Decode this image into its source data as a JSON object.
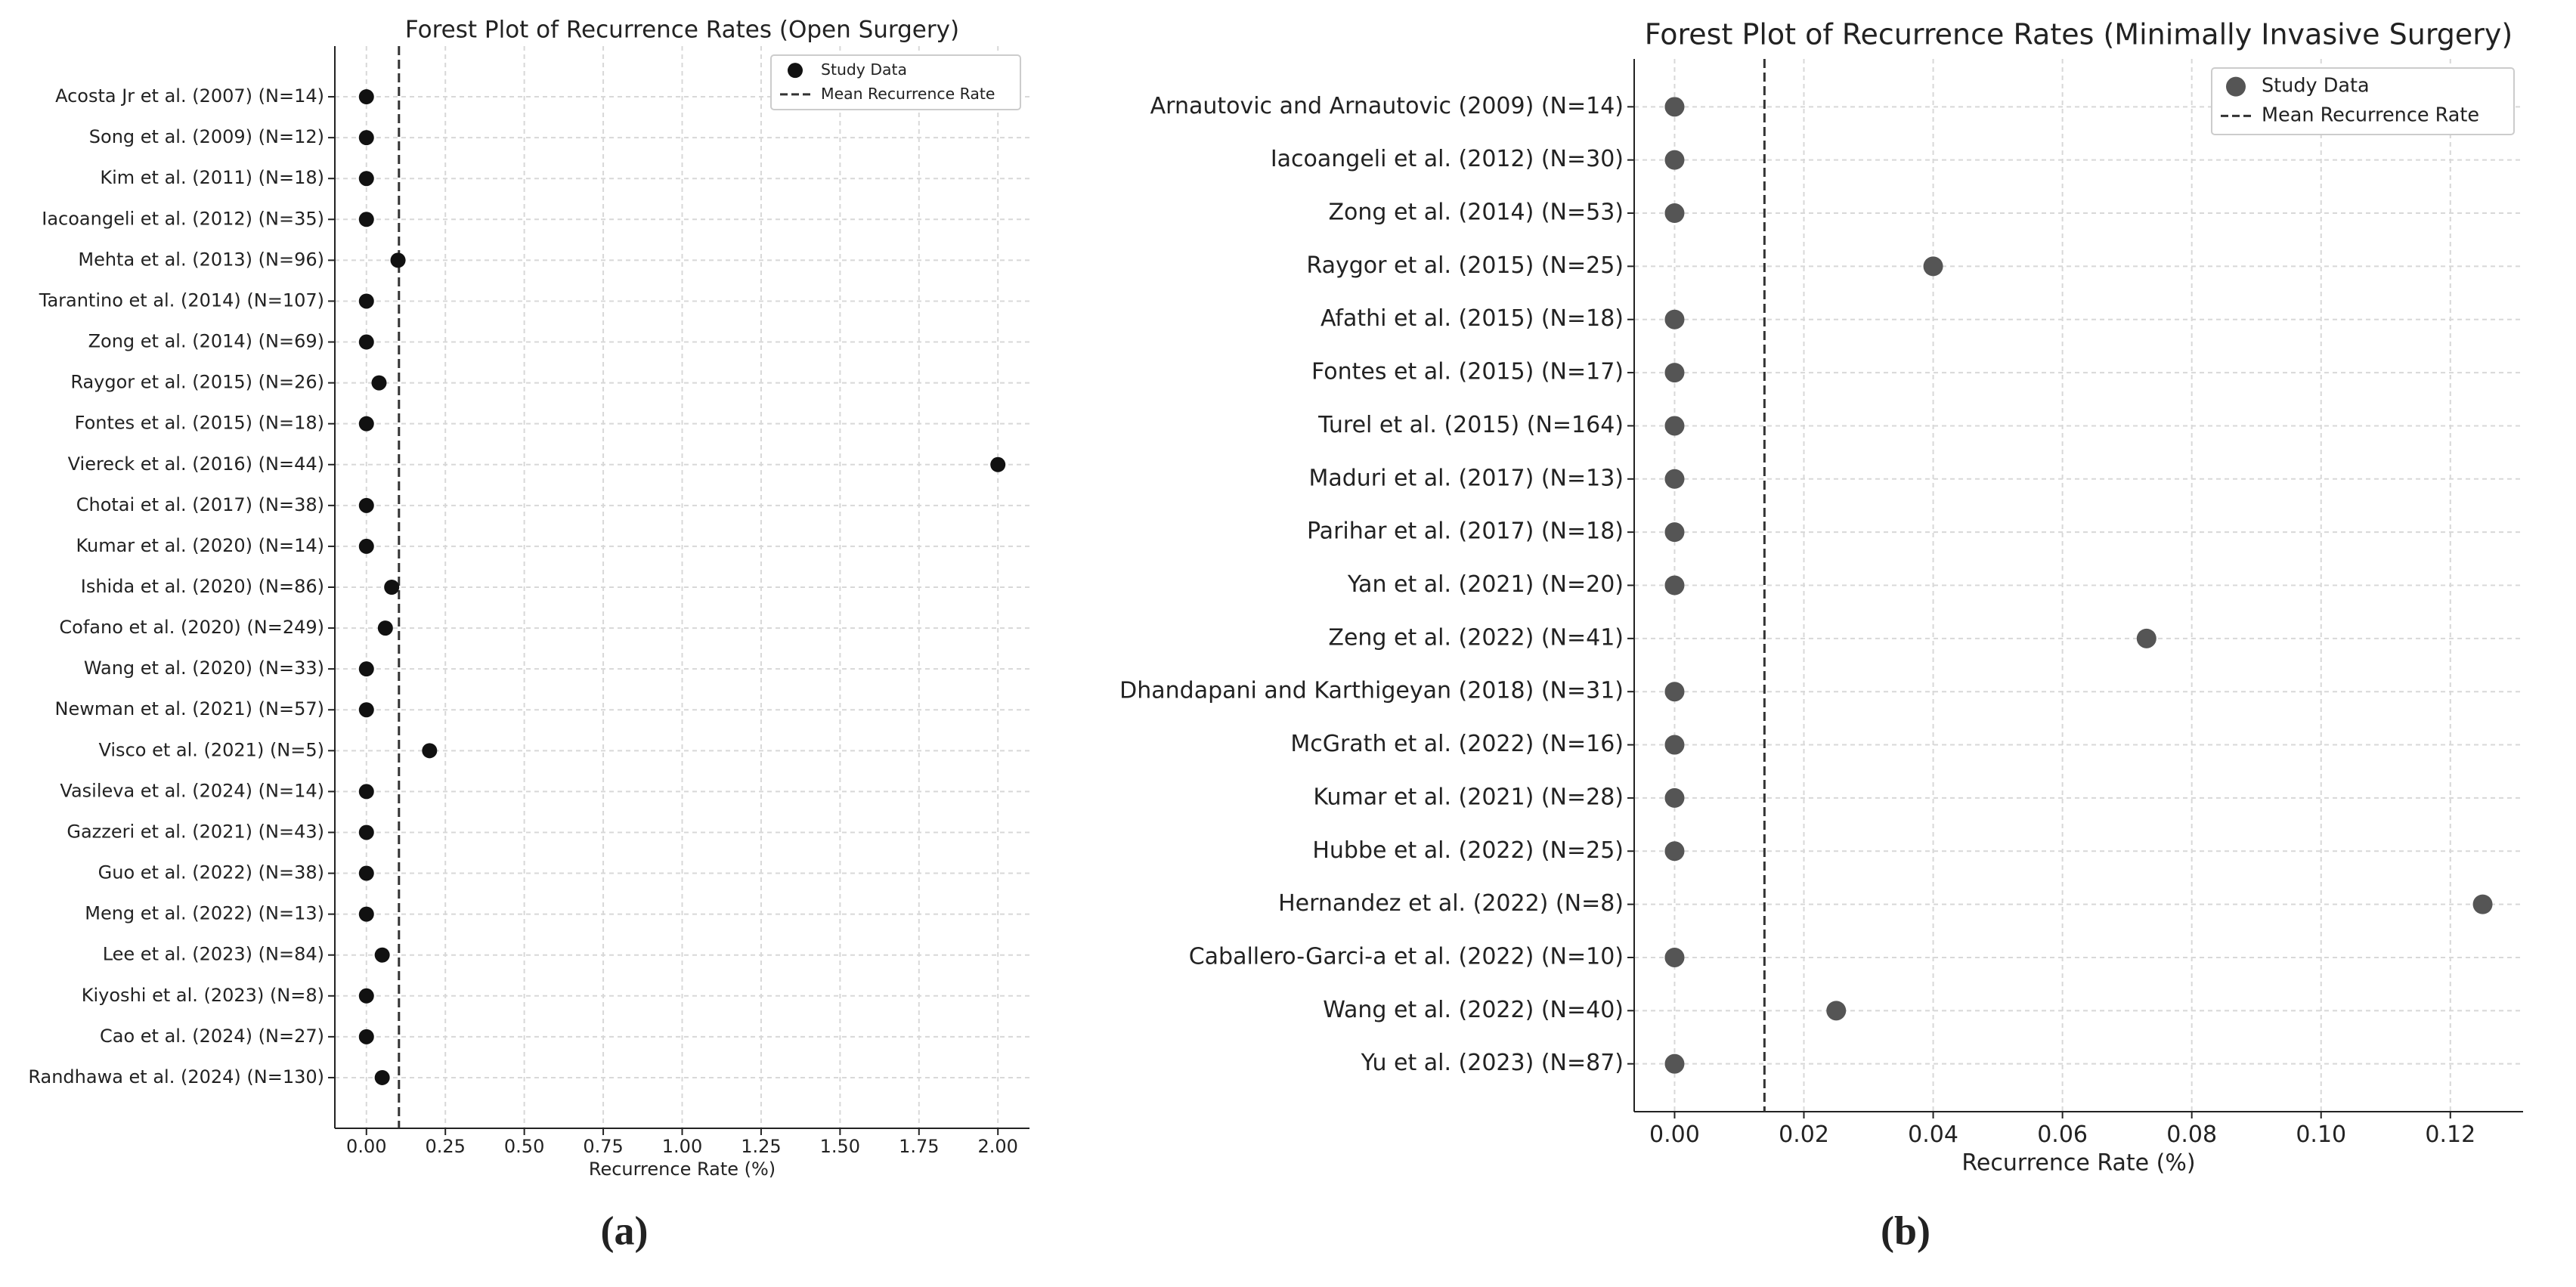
{
  "chart_data": [
    {
      "type": "scatter",
      "label": "(a)",
      "title": "Forest Plot of Recurrence Rates (Open Surgery)",
      "x_label": "Recurrence Rate (%)",
      "categories": [
        "Acosta Jr et al. (2007) (N=14)",
        "Song et al. (2009) (N=12)",
        "Kim et al. (2011) (N=18)",
        "Iacoangeli et al. (2012) (N=35)",
        "Mehta et al. (2013) (N=96)",
        "Tarantino et al. (2014) (N=107)",
        "Zong et al. (2014) (N=69)",
        "Raygor et al. (2015) (N=26)",
        "Fontes et al. (2015) (N=18)",
        "Viereck et al. (2016) (N=44)",
        "Chotai et al. (2017) (N=38)",
        "Kumar et al. (2020) (N=14)",
        "Ishida et al. (2020) (N=86)",
        "Cofano et al. (2020) (N=249)",
        "Wang et al. (2020) (N=33)",
        "Newman et al. (2021) (N=57)",
        "Visco et al. (2021) (N=5)",
        "Vasileva et al. (2024) (N=14)",
        "Gazzeri et al. (2021) (N=43)",
        "Guo et al. (2022) (N=38)",
        "Meng et al. (2022) (N=13)",
        "Lee et al. (2023) (N=84)",
        "Kiyoshi et al. (2023) (N=8)",
        "Cao et al. (2024) (N=27)",
        "Randhawa et al. (2024) (N=130)"
      ],
      "series": [
        {
          "name": "Study Data",
          "color": "#111111",
          "values": [
            0,
            0,
            0,
            0,
            0.1,
            0,
            0,
            0.04,
            0,
            2.0,
            0,
            0,
            0.08,
            0.06,
            0,
            0,
            0.2,
            0,
            0,
            0,
            0,
            0.05,
            0,
            0,
            0.05
          ]
        }
      ],
      "mean_line": {
        "name": "Mean Recurrence Rate",
        "value": 0.103,
        "color": "#333333"
      },
      "xlim": [
        -0.1,
        2.1
      ],
      "xticks": [
        {
          "value": 0,
          "label": "0.00"
        },
        0.25,
        {
          "value": 0.5,
          "label": "0.50"
        },
        0.75,
        {
          "value": 1,
          "label": "1.00"
        },
        1.25,
        {
          "value": 1.5,
          "label": "1.50"
        },
        1.75,
        {
          "value": 2,
          "label": "2.00"
        }
      ],
      "grid": true,
      "legend": "upper right"
    },
    {
      "type": "scatter",
      "label": "(b)",
      "title": "Forest Plot of Recurrence Rates (Minimally Invasive Surgery)",
      "x_label": "Recurrence Rate (%)",
      "categories": [
        "Arnautovic and Arnautovic (2009) (N=14)",
        "Iacoangeli et al. (2012) (N=30)",
        "Zong et al. (2014) (N=53)",
        "Raygor et al. (2015) (N=25)",
        "Afathi et al. (2015) (N=18)",
        "Fontes et al. (2015) (N=17)",
        "Turel et al. (2015) (N=164)",
        "Maduri et al. (2017) (N=13)",
        "Parihar et al. (2017) (N=18)",
        "Yan et al. (2021) (N=20)",
        "Zeng et al. (2022) (N=41)",
        "Dhandapani and Karthigeyan (2018) (N=31)",
        "McGrath et al. (2022) (N=16)",
        "Kumar et al. (2021) (N=28)",
        "Hubbe et al. (2022) (N=25)",
        "Hernandez et al. (2022) (N=8)",
        "Caballero-Garci-a et al. (2022) (N=10)",
        "Wang et al. (2022) (N=40)",
        "Yu et al. (2023) (N=87)"
      ],
      "series": [
        {
          "name": "Study Data",
          "color": "#555555",
          "values": [
            0,
            0,
            0,
            0.04,
            0,
            0,
            0,
            0,
            0,
            0,
            0.073,
            0,
            0,
            0,
            0,
            0.125,
            0,
            0.025,
            0
          ]
        }
      ],
      "mean_line": {
        "name": "Mean Recurrence Rate",
        "value": 0.0139,
        "color": "#333333"
      },
      "xlim": [
        -0.00625,
        0.13125
      ],
      "xticks": [
        {
          "value": 0,
          "label": "0.00"
        },
        0.02,
        0.04,
        0.06,
        0.08,
        {
          "value": 0.1,
          "label": "0.10"
        },
        0.12
      ],
      "grid": true,
      "legend": "upper right"
    }
  ]
}
